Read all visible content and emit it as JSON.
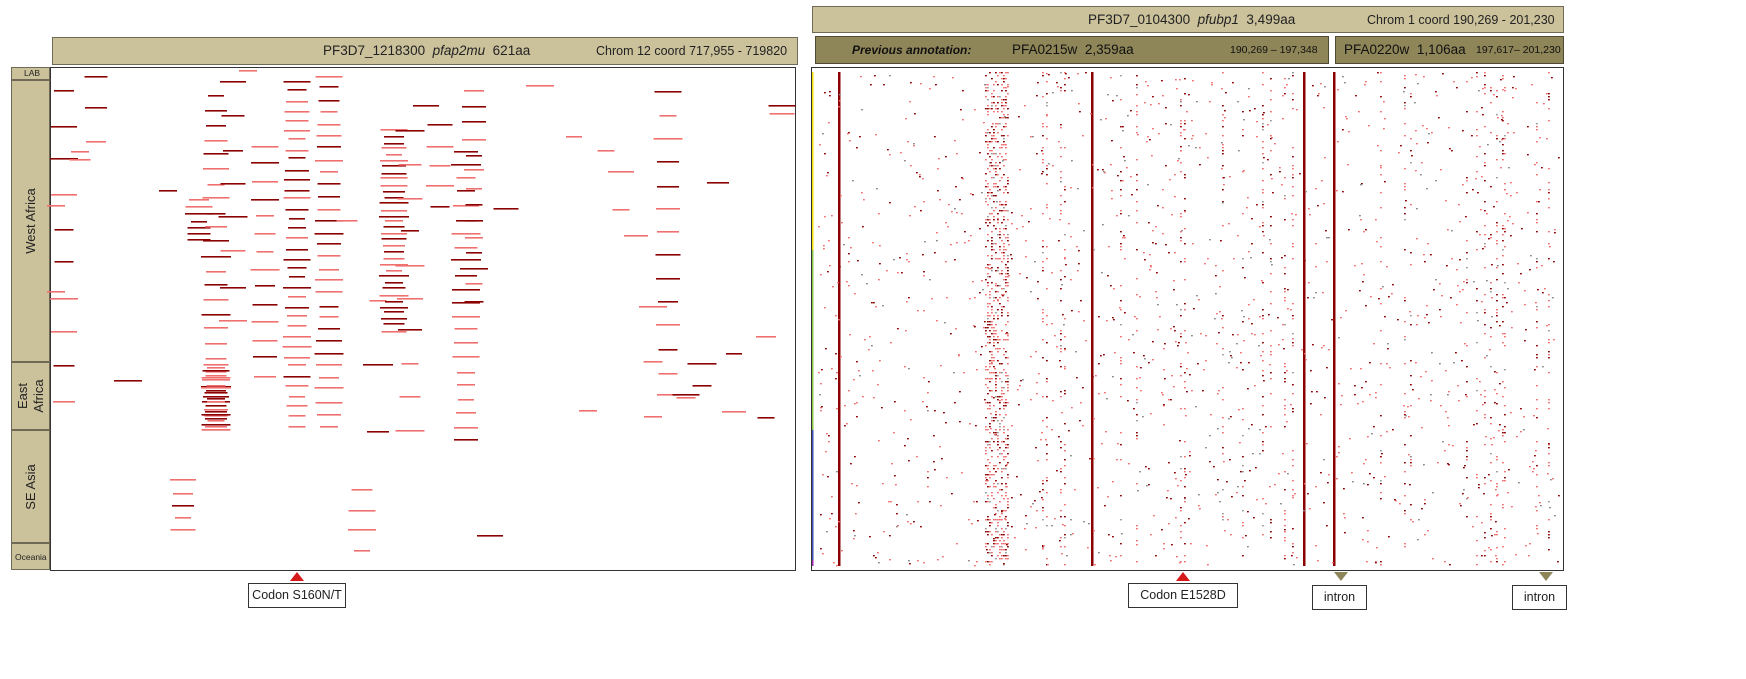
{
  "left": {
    "gene_id": "PF3D7_1218300",
    "gene_name": "pfap2mu",
    "length": "621aa",
    "coords": "Chrom 12 coord 717,955 - 719820",
    "regions": [
      {
        "label": "LAB"
      },
      {
        "label": "West Africa"
      },
      {
        "label": "East Africa"
      },
      {
        "label": "SE Asia"
      },
      {
        "label": "Oceania"
      }
    ],
    "marker": "Codon S160N/T"
  },
  "right": {
    "gene_id": "PF3D7_0104300",
    "gene_name": "pfubp1",
    "length": "3,499aa",
    "coords": "Chrom 1 coord 190,269 - 201,230",
    "prev_label": "Previous annotation:",
    "annot1": {
      "name": "PFA0215w",
      "length": "2,359aa",
      "coords": "190,269 – 197,348"
    },
    "annot2": {
      "name": "PFA0220w",
      "length": "1,106aa",
      "coords": "197,617– 201,230"
    },
    "marker": "Codon E1528D",
    "intron1": "intron",
    "intron2": "intron"
  },
  "colors": {
    "header": "#cbc29c",
    "header_dark": "#8e8558",
    "snp_dark": "#8b0000",
    "snp_light": "#f07070",
    "codon_marker": "#d61a1a"
  },
  "chart_data": {
    "type": "heatmap",
    "description_units": "rows = parasite samples grouped by region; columns = codon positions",
    "left_panel": {
      "codon_range": [
        1,
        621
      ],
      "hotspot_codons": [
        160
      ]
    },
    "right_panel": {
      "codon_range": [
        1,
        3499
      ],
      "hotspot_codons": [
        1528
      ]
    }
  }
}
